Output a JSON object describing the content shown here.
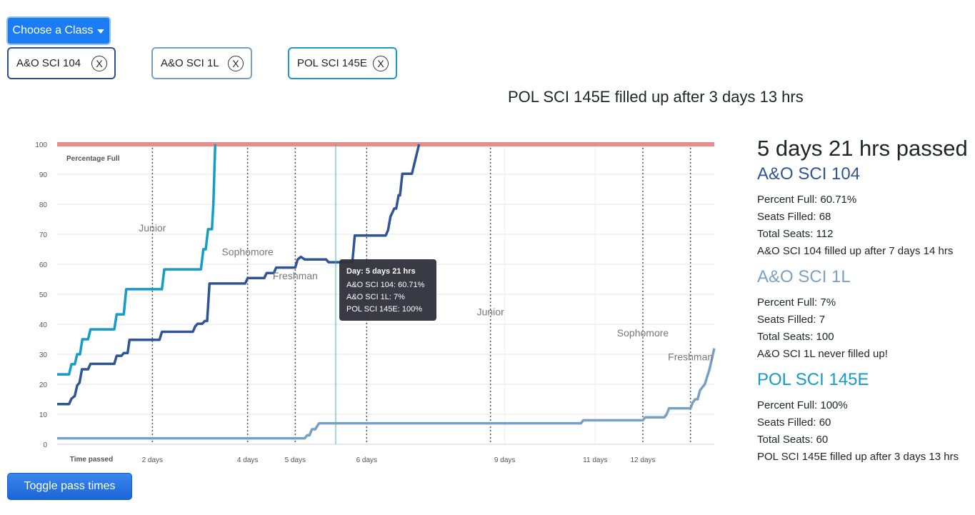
{
  "controls": {
    "choose_label": "Choose a Class",
    "toggle_label": "Toggle pass times"
  },
  "chips": [
    {
      "label": "A&O SCI 104",
      "close": "X",
      "color": "#2e4f91"
    },
    {
      "label": "A&O SCI 1L",
      "close": "X",
      "color": "#78a0c4"
    },
    {
      "label": "POL SCI 145E",
      "close": "X",
      "color": "#1a9dc0"
    }
  ],
  "headline": "POL SCI 145E filled up after 3 days 13 hrs",
  "side": {
    "passed": "5 days 21 hrs passed",
    "classes": [
      {
        "name": "A&O SCI 104",
        "color": "#2f5597",
        "lines": [
          "Percent Full: 60.71%",
          "Seats Filled: 68",
          "Total Seats: 112",
          "A&O SCI 104 filled up after 7 days 14 hrs"
        ]
      },
      {
        "name": "A&O SCI 1L",
        "color": "#7ba2c6",
        "lines": [
          "Percent Full: 7%",
          "Seats Filled: 7",
          "Total Seats: 100",
          "A&O SCI 1L never filled up!"
        ]
      },
      {
        "name": "POL SCI 145E",
        "color": "#159cc9",
        "lines": [
          "Percent Full: 100%",
          "Seats Filled: 60",
          "Total Seats: 60",
          "POL SCI 145E filled up after 3 days 13 hrs"
        ]
      }
    ]
  },
  "tooltip": {
    "title": "Day: 5 days 21 hrs",
    "lines": [
      "A&O SCI 104: 60.71%",
      "A&O SCI 1L: 7%",
      "POL SCI 145E: 100%"
    ]
  },
  "chart_data": {
    "type": "line",
    "ylabel": "Percentage Full",
    "xlabel": "Time passed",
    "ylim": [
      0,
      100
    ],
    "xlim": [
      0,
      13.8
    ],
    "yticks": [
      0,
      10,
      20,
      30,
      40,
      50,
      60,
      70,
      80,
      90,
      100
    ],
    "xticks": [
      {
        "label": "2 days",
        "x": 2.0
      },
      {
        "label": "4 days",
        "x": 4.0
      },
      {
        "label": "5 days",
        "x": 5.0
      },
      {
        "label": "6 days",
        "x": 6.5
      },
      {
        "label": "9 days",
        "x": 9.4
      },
      {
        "label": "11 days",
        "x": 11.3
      },
      {
        "label": "12 days",
        "x": 12.3
      }
    ],
    "cap_line": 100,
    "cursor_x": 5.85,
    "pass_times": [
      {
        "label": "Junior",
        "x": 2.0,
        "y": 71
      },
      {
        "label": "Sophomore",
        "x": 4.0,
        "y": 63
      },
      {
        "label": "Freshman",
        "x": 5.0,
        "y": 55
      },
      {
        "label": "",
        "x": 6.5
      },
      {
        "label": "Junior",
        "x": 9.1,
        "y": 43
      },
      {
        "label": "Sophomore",
        "x": 12.3,
        "y": 36
      },
      {
        "label": "Freshman",
        "x": 13.3,
        "y": 28
      }
    ],
    "series": [
      {
        "name": "A&O SCI 104",
        "color": "#2f5597",
        "points": [
          [
            0,
            13.4
          ],
          [
            0.25,
            13.4
          ],
          [
            0.3,
            15.2
          ],
          [
            0.37,
            16.1
          ],
          [
            0.42,
            19.6
          ],
          [
            0.47,
            20.5
          ],
          [
            0.52,
            25
          ],
          [
            0.65,
            25
          ],
          [
            0.7,
            26.8
          ],
          [
            1.2,
            26.8
          ],
          [
            1.25,
            29.5
          ],
          [
            1.35,
            29.5
          ],
          [
            1.4,
            30.4
          ],
          [
            1.48,
            30.4
          ],
          [
            1.52,
            34.8
          ],
          [
            2.0,
            34.8
          ],
          [
            2.15,
            34.8
          ],
          [
            2.2,
            37.5
          ],
          [
            2.85,
            37.5
          ],
          [
            2.9,
            39.3
          ],
          [
            2.95,
            40.2
          ],
          [
            3.05,
            40.2
          ],
          [
            3.1,
            41.1
          ],
          [
            3.15,
            41.1
          ],
          [
            3.2,
            53.6
          ],
          [
            3.95,
            53.6
          ],
          [
            4.0,
            55.4
          ],
          [
            4.35,
            55.4
          ],
          [
            4.4,
            57.1
          ],
          [
            4.55,
            57.1
          ],
          [
            4.6,
            58.9
          ],
          [
            5.0,
            58.9
          ],
          [
            5.05,
            61.6
          ],
          [
            5.12,
            62.5
          ],
          [
            5.2,
            61.6
          ],
          [
            5.65,
            61.6
          ],
          [
            5.7,
            60.7
          ],
          [
            5.85,
            60.7
          ],
          [
            6.2,
            60.7
          ],
          [
            6.25,
            69.6
          ],
          [
            6.9,
            69.6
          ],
          [
            6.95,
            71.4
          ],
          [
            7.0,
            75.9
          ],
          [
            7.08,
            78.6
          ],
          [
            7.12,
            78.6
          ],
          [
            7.17,
            83
          ],
          [
            7.2,
            83
          ],
          [
            7.25,
            90.2
          ],
          [
            7.45,
            90.2
          ],
          [
            7.6,
            100
          ]
        ]
      },
      {
        "name": "A&O SCI 1L",
        "color": "#78a0c4",
        "points": [
          [
            0,
            2
          ],
          [
            5.2,
            2
          ],
          [
            5.25,
            3
          ],
          [
            5.3,
            3
          ],
          [
            5.35,
            5
          ],
          [
            5.42,
            5
          ],
          [
            5.5,
            7
          ],
          [
            11.0,
            7
          ],
          [
            11.05,
            8
          ],
          [
            12.3,
            8
          ],
          [
            12.35,
            9
          ],
          [
            12.75,
            9
          ],
          [
            12.8,
            10
          ],
          [
            12.85,
            12
          ],
          [
            13.3,
            12
          ],
          [
            13.35,
            14
          ],
          [
            13.4,
            15
          ],
          [
            13.45,
            15
          ],
          [
            13.5,
            18
          ],
          [
            13.55,
            19
          ],
          [
            13.6,
            20
          ],
          [
            13.7,
            25
          ],
          [
            13.8,
            32
          ]
        ]
      },
      {
        "name": "POL SCI 145E",
        "color": "#159cc9",
        "points": [
          [
            0,
            23.3
          ],
          [
            0.25,
            23.3
          ],
          [
            0.3,
            26.7
          ],
          [
            0.37,
            26.7
          ],
          [
            0.42,
            30
          ],
          [
            0.48,
            30
          ],
          [
            0.53,
            35
          ],
          [
            0.65,
            35
          ],
          [
            0.7,
            38.3
          ],
          [
            1.2,
            38.3
          ],
          [
            1.25,
            43.3
          ],
          [
            1.4,
            43.3
          ],
          [
            1.45,
            51.7
          ],
          [
            2.0,
            51.7
          ],
          [
            2.2,
            51.7
          ],
          [
            2.25,
            58.3
          ],
          [
            3.02,
            58.3
          ],
          [
            3.07,
            65
          ],
          [
            3.12,
            65
          ],
          [
            3.17,
            71.7
          ],
          [
            3.25,
            71.7
          ],
          [
            3.28,
            80
          ],
          [
            3.3,
            90
          ],
          [
            3.32,
            100
          ]
        ]
      }
    ]
  }
}
